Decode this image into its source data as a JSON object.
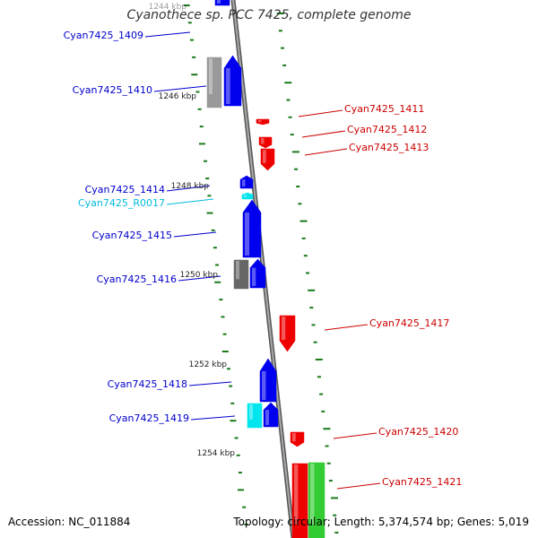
{
  "title": "Cyanothece sp. PCC 7425, complete genome",
  "accession": "Accession: NC_011884",
  "summary": "Topology: circular; Length: 5,374,574 bp; Genes: 5,019",
  "colors": {
    "forward_gene": "#0000ee",
    "reverse_gene": "#ee0000",
    "rna": "#00e5ee",
    "pseudogene_grey": "#999999",
    "other_green": "#33cc33",
    "tick": "#1a7a1a",
    "backbone": "#888888",
    "forward_label": "#0000cc",
    "reverse_label": "#cc0000",
    "rna_label": "#00bbdd"
  },
  "kbp_marks": [
    {
      "label": "1244 kbp"
    },
    {
      "label": "1246 kbp"
    },
    {
      "label": "1248 kbp"
    },
    {
      "label": "1250 kbp"
    },
    {
      "label": "1252 kbp"
    },
    {
      "label": "1254 kbp"
    }
  ],
  "genes": [
    {
      "label": "Cyan7425_1409",
      "strand": "forward"
    },
    {
      "label": "Cyan7425_1410",
      "strand": "forward"
    },
    {
      "label": "Cyan7425_1411",
      "strand": "reverse"
    },
    {
      "label": "Cyan7425_1412",
      "strand": "reverse"
    },
    {
      "label": "Cyan7425_1413",
      "strand": "reverse"
    },
    {
      "label": "Cyan7425_1414",
      "strand": "forward"
    },
    {
      "label": "Cyan7425_R0017",
      "strand": "rna"
    },
    {
      "label": "Cyan7425_1415",
      "strand": "forward"
    },
    {
      "label": "Cyan7425_1416",
      "strand": "forward"
    },
    {
      "label": "Cyan7425_1417",
      "strand": "reverse"
    },
    {
      "label": "Cyan7425_1418",
      "strand": "forward"
    },
    {
      "label": "Cyan7425_1419",
      "strand": "forward"
    },
    {
      "label": "Cyan7425_1420",
      "strand": "reverse"
    },
    {
      "label": "Cyan7425_1421",
      "strand": "reverse"
    }
  ]
}
